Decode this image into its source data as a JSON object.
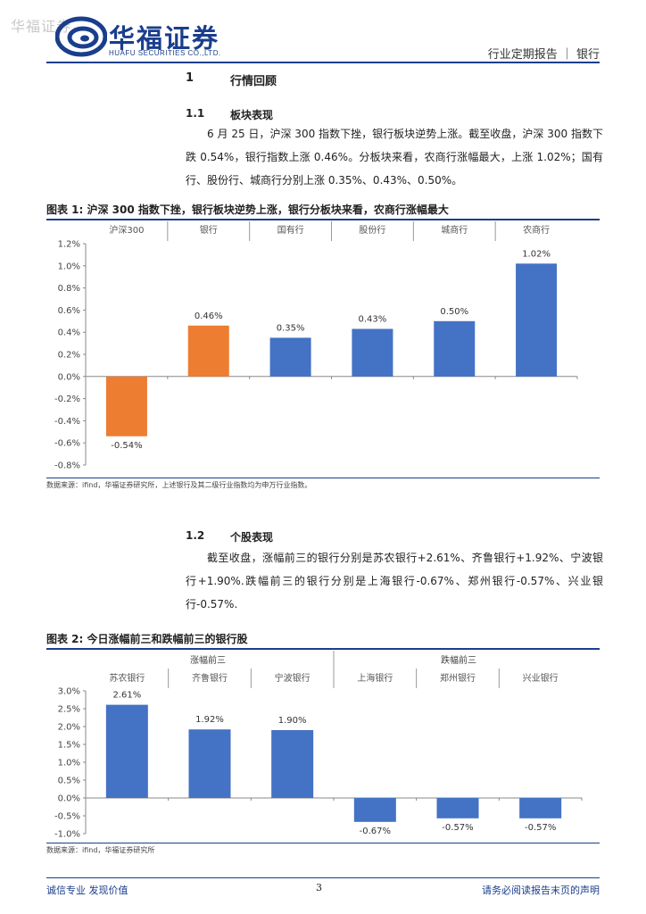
{
  "watermark": "华福证券",
  "logo": {
    "cn": "华福证券",
    "en": "HUAFU SECURITIES CO.,LTD."
  },
  "header": {
    "right": "行业定期报告 ｜ 银行"
  },
  "section1": {
    "num": "1",
    "title": "行情回顾"
  },
  "section1_1": {
    "num": "1.1",
    "title": "板块表现",
    "para": "6 月 25 日，沪深 300 指数下挫，银行板块逆势上涨。截至收盘，沪深 300 指数下跌 0.54%，银行指数上涨 0.46%。分板块来看，农商行涨幅最大，上涨 1.02%；国有行、股份行、城商行分别上涨 0.35%、0.43%、0.50%。"
  },
  "fig1": {
    "title": "图表 1:  沪深 300 指数下挫，银行板块逆势上涨，银行分板块来看，农商行涨幅最大",
    "source": "数据来源：ifind，华福证券研究所，上述银行及其二级行业指数均为申万行业指数。"
  },
  "section1_2": {
    "num": "1.2",
    "title": "个股表现",
    "para": "截至收盘，涨幅前三的银行分别是苏农银行+2.61%、齐鲁银行+1.92%、宁波银行+1.90%.跌幅前三的银行分别是上海银行-0.67%、郑州银行-0.57%、兴业银行-0.57%."
  },
  "fig2": {
    "title": "图表 2:  今日涨幅前三和跌幅前三的银行股",
    "group_up": "涨幅前三",
    "group_down": "跌幅前三",
    "source": "数据来源：ifind，华福证券研究所"
  },
  "footer": {
    "left": "诚信专业  发现价值",
    "page": "3",
    "right": "请务必阅读报告末页的声明"
  },
  "colors": {
    "blue": "#4472C4",
    "orange": "#ED7D31",
    "brand": "#1a3e8c"
  },
  "chart_data": [
    {
      "type": "bar",
      "categories": [
        "沪深300",
        "银行",
        "国有行",
        "股份行",
        "城商行",
        "农商行"
      ],
      "values": [
        -0.54,
        0.46,
        0.35,
        0.43,
        0.5,
        1.02
      ],
      "labels": [
        "-0.54%",
        "0.46%",
        "0.35%",
        "0.43%",
        "0.50%",
        "1.02%"
      ],
      "bar_colors": [
        "#ED7D31",
        "#ED7D31",
        "#4472C4",
        "#4472C4",
        "#4472C4",
        "#4472C4"
      ],
      "yticks": [
        "1.2%",
        "1.0%",
        "0.8%",
        "0.6%",
        "0.4%",
        "0.2%",
        "0.0%",
        "-0.2%",
        "-0.4%",
        "-0.6%",
        "-0.8%"
      ],
      "ylim": [
        -0.8,
        1.2
      ],
      "grid": false,
      "category_position": "top"
    },
    {
      "type": "bar",
      "categories": [
        "苏农银行",
        "齐鲁银行",
        "宁波银行",
        "上海银行",
        "郑州银行",
        "兴业银行"
      ],
      "values": [
        2.61,
        1.92,
        1.9,
        -0.67,
        -0.57,
        -0.57
      ],
      "labels": [
        "2.61%",
        "1.92%",
        "1.90%",
        "-0.67%",
        "-0.57%",
        "-0.57%"
      ],
      "bar_colors": [
        "#4472C4",
        "#4472C4",
        "#4472C4",
        "#4472C4",
        "#4472C4",
        "#4472C4"
      ],
      "yticks": [
        "3.0%",
        "2.5%",
        "2.0%",
        "1.5%",
        "1.0%",
        "0.5%",
        "0.0%",
        "-0.5%",
        "-1.0%"
      ],
      "ylim": [
        -1.0,
        3.0
      ],
      "grid": false,
      "category_position": "top"
    }
  ]
}
